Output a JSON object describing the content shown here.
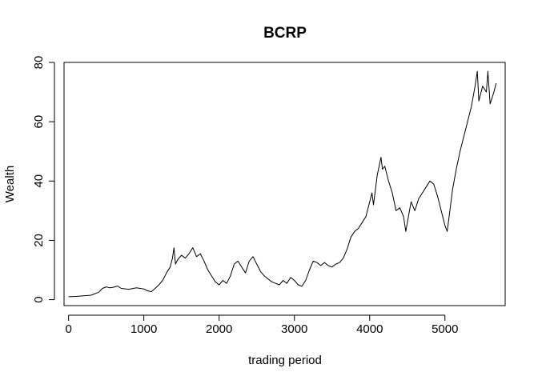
{
  "chart_data": {
    "type": "line",
    "title": "BCRP",
    "xlabel": "trading period",
    "ylabel": "Wealth",
    "xlim": [
      -60,
      5800
    ],
    "ylim": [
      -2,
      80
    ],
    "x_ticks": [
      0,
      1000,
      2000,
      3000,
      4000,
      5000
    ],
    "y_ticks": [
      0,
      20,
      40,
      60,
      80
    ],
    "grid": false,
    "legend": "none",
    "series": [
      {
        "color": "#000000",
        "points": [
          [
            0,
            1.0
          ],
          [
            100,
            1.1
          ],
          [
            200,
            1.3
          ],
          [
            300,
            1.5
          ],
          [
            400,
            2.5
          ],
          [
            450,
            3.8
          ],
          [
            500,
            4.3
          ],
          [
            550,
            4.0
          ],
          [
            600,
            4.2
          ],
          [
            650,
            4.6
          ],
          [
            700,
            3.8
          ],
          [
            800,
            3.5
          ],
          [
            900,
            4.0
          ],
          [
            1000,
            3.6
          ],
          [
            1050,
            3.0
          ],
          [
            1100,
            2.7
          ],
          [
            1150,
            3.8
          ],
          [
            1200,
            5.0
          ],
          [
            1250,
            6.5
          ],
          [
            1300,
            9.0
          ],
          [
            1350,
            11.0
          ],
          [
            1380,
            14.0
          ],
          [
            1400,
            17.5
          ],
          [
            1420,
            12.0
          ],
          [
            1450,
            13.5
          ],
          [
            1500,
            15.0
          ],
          [
            1550,
            14.0
          ],
          [
            1600,
            15.5
          ],
          [
            1650,
            17.5
          ],
          [
            1700,
            14.5
          ],
          [
            1750,
            15.5
          ],
          [
            1800,
            13.0
          ],
          [
            1850,
            10.0
          ],
          [
            1900,
            8.0
          ],
          [
            1950,
            6.0
          ],
          [
            2000,
            5.0
          ],
          [
            2050,
            6.5
          ],
          [
            2100,
            5.5
          ],
          [
            2150,
            8.0
          ],
          [
            2200,
            12.0
          ],
          [
            2250,
            13.0
          ],
          [
            2300,
            11.0
          ],
          [
            2350,
            9.0
          ],
          [
            2400,
            13.0
          ],
          [
            2450,
            14.5
          ],
          [
            2500,
            12.0
          ],
          [
            2550,
            9.5
          ],
          [
            2600,
            8.0
          ],
          [
            2650,
            7.0
          ],
          [
            2700,
            6.0
          ],
          [
            2750,
            5.5
          ],
          [
            2800,
            5.0
          ],
          [
            2850,
            6.5
          ],
          [
            2900,
            5.5
          ],
          [
            2950,
            7.5
          ],
          [
            3000,
            6.5
          ],
          [
            3050,
            5.0
          ],
          [
            3100,
            4.5
          ],
          [
            3150,
            6.5
          ],
          [
            3200,
            10.0
          ],
          [
            3250,
            13.0
          ],
          [
            3300,
            12.5
          ],
          [
            3350,
            11.5
          ],
          [
            3400,
            12.5
          ],
          [
            3450,
            11.5
          ],
          [
            3500,
            11.0
          ],
          [
            3550,
            12.0
          ],
          [
            3600,
            12.5
          ],
          [
            3650,
            14.0
          ],
          [
            3700,
            17.0
          ],
          [
            3750,
            21.0
          ],
          [
            3800,
            23.0
          ],
          [
            3850,
            24.0
          ],
          [
            3900,
            26.0
          ],
          [
            3950,
            28.0
          ],
          [
            4000,
            33.0
          ],
          [
            4030,
            36.0
          ],
          [
            4050,
            32.0
          ],
          [
            4100,
            42.0
          ],
          [
            4150,
            48.0
          ],
          [
            4170,
            44.0
          ],
          [
            4200,
            45.0
          ],
          [
            4250,
            40.0
          ],
          [
            4300,
            36.0
          ],
          [
            4350,
            30.0
          ],
          [
            4400,
            31.0
          ],
          [
            4450,
            28.0
          ],
          [
            4480,
            23.0
          ],
          [
            4500,
            26.0
          ],
          [
            4550,
            33.0
          ],
          [
            4600,
            30.0
          ],
          [
            4650,
            34.0
          ],
          [
            4700,
            36.0
          ],
          [
            4750,
            38.0
          ],
          [
            4800,
            40.0
          ],
          [
            4850,
            39.0
          ],
          [
            4900,
            35.0
          ],
          [
            4950,
            30.0
          ],
          [
            5000,
            25.0
          ],
          [
            5030,
            23.0
          ],
          [
            5050,
            27.0
          ],
          [
            5100,
            37.0
          ],
          [
            5150,
            44.0
          ],
          [
            5200,
            50.0
          ],
          [
            5250,
            55.0
          ],
          [
            5300,
            60.0
          ],
          [
            5350,
            65.0
          ],
          [
            5400,
            72.0
          ],
          [
            5430,
            77.0
          ],
          [
            5450,
            67.0
          ],
          [
            5500,
            72.0
          ],
          [
            5550,
            70.0
          ],
          [
            5570,
            77.0
          ],
          [
            5600,
            66.0
          ],
          [
            5650,
            70.0
          ],
          [
            5680,
            73.0
          ]
        ]
      }
    ]
  }
}
